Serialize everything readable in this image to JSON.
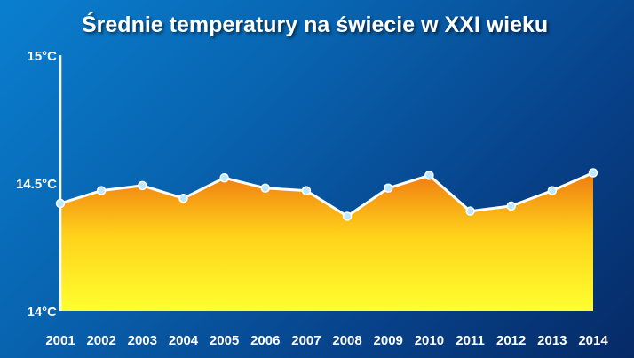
{
  "chart_data": {
    "type": "area",
    "title": "Średnie temperatury na świecie w XXI wieku",
    "x": [
      "2001",
      "2002",
      "2003",
      "2004",
      "2005",
      "2006",
      "2007",
      "2008",
      "2009",
      "2010",
      "2011",
      "2012",
      "2013",
      "2014"
    ],
    "values": [
      14.42,
      14.47,
      14.49,
      14.44,
      14.52,
      14.48,
      14.47,
      14.37,
      14.48,
      14.53,
      14.39,
      14.41,
      14.47,
      14.54
    ],
    "y_ticks": [
      "14°C",
      "14.5°C",
      "15°C"
    ],
    "ylim": [
      14,
      15
    ],
    "xlabel": "",
    "ylabel": "",
    "grid": false,
    "colors": {
      "fill_top": "#f07a10",
      "fill_bottom": "#ffff30",
      "line": "#ffffff",
      "marker_fill": "#bfe8ff",
      "marker_stroke": "#ffffff",
      "axis": "#ffffff"
    }
  }
}
